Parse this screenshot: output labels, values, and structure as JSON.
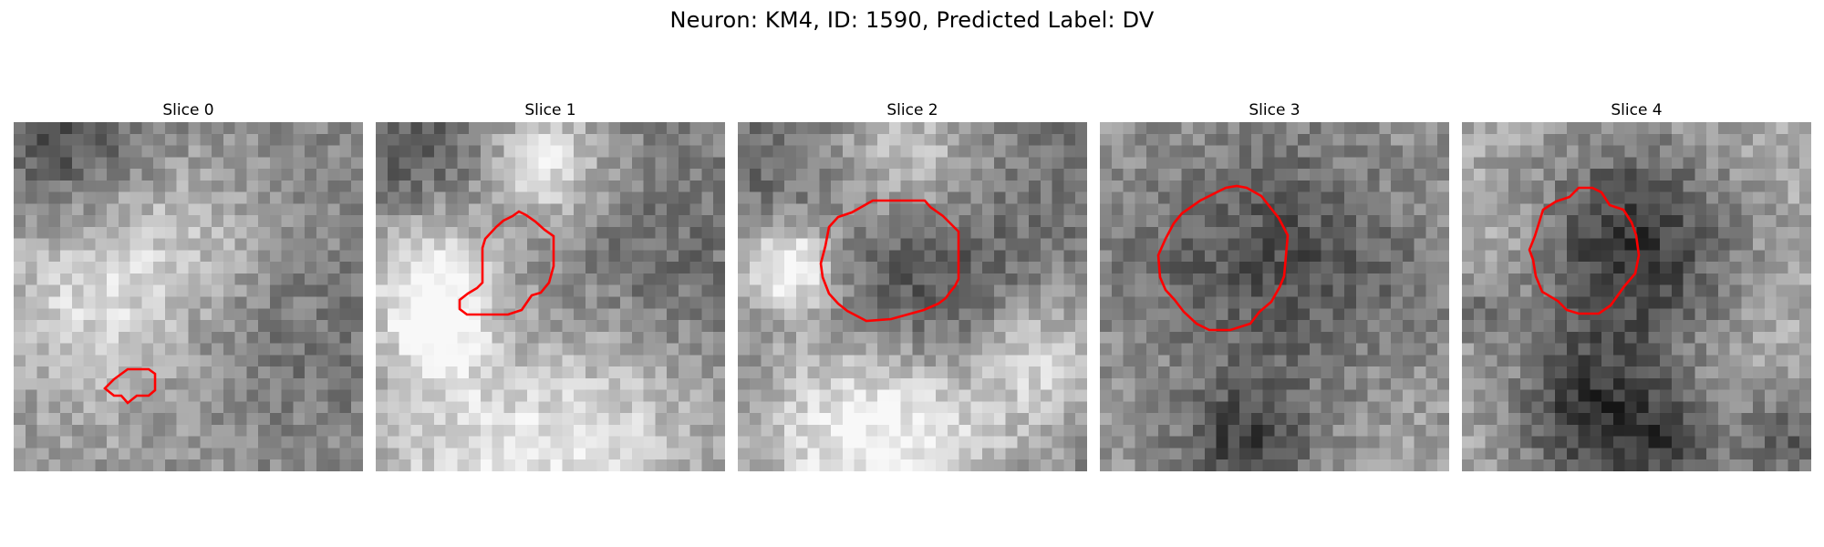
{
  "figure": {
    "title": "Neuron: KM4, ID: 1590, Predicted Label: DV"
  },
  "colors": {
    "contour": "#ff0000",
    "background": "#ffffff"
  },
  "slices": [
    {
      "title": "Slice 0"
    },
    {
      "title": "Slice 1"
    },
    {
      "title": "Slice 2"
    },
    {
      "title": "Slice 3"
    },
    {
      "title": "Slice 4"
    }
  ]
}
